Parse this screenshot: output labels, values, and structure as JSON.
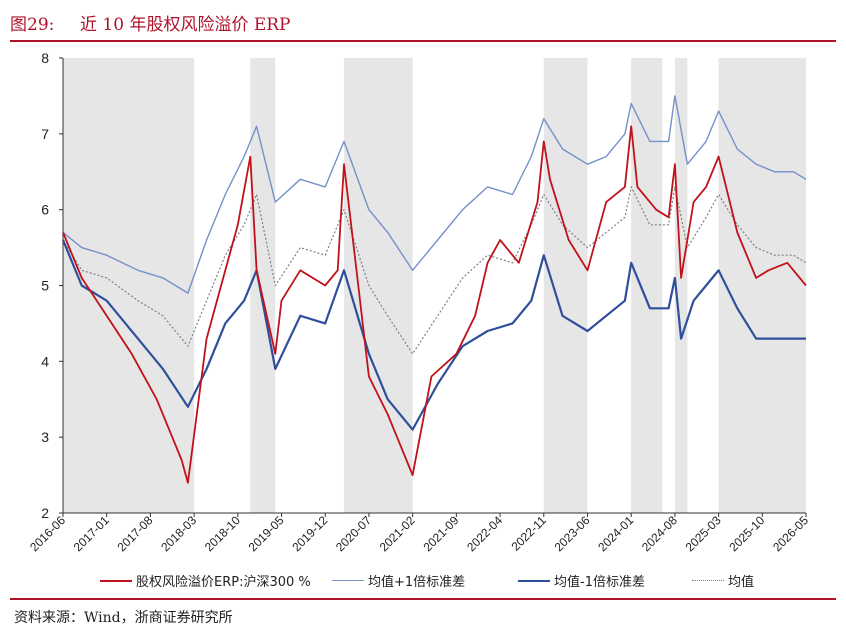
{
  "header": {
    "figure_no": "图29:",
    "title": "近 10 年股权风险溢价 ERP"
  },
  "source": "资料来源：Wind，浙商证券研究所",
  "colors": {
    "erp": "#c0121b",
    "plus1": "#7690c9",
    "minus1": "#2f4f9c",
    "mean": "#808080",
    "shade": "#e6e6e6",
    "accent": "#b0122b"
  },
  "chart_data": {
    "type": "line",
    "ylim": [
      2,
      8
    ],
    "yticks": [
      "2",
      "3",
      "4",
      "5",
      "6",
      "7",
      "8"
    ],
    "xlim": [
      "2016-06",
      "2026-05"
    ],
    "xticks": [
      "2016-06",
      "2017-01",
      "2017-08",
      "2018-03",
      "2018-10",
      "2019-05",
      "2019-12",
      "2020-07",
      "2021-02",
      "2021-09",
      "2022-04",
      "2022-11",
      "2023-06",
      "2024-01",
      "2024-08",
      "2025-03",
      "2025-10",
      "2026-05"
    ],
    "shaded_periods": [
      [
        "2016-06",
        "2018-03"
      ],
      [
        "2018-12",
        "2019-04"
      ],
      [
        "2020-03",
        "2021-02"
      ],
      [
        "2022-11",
        "2023-06"
      ],
      [
        "2024-01",
        "2024-06"
      ],
      [
        "2024-08",
        "2024-10"
      ],
      [
        "2025-03",
        "2026-05"
      ]
    ],
    "series": [
      {
        "name": "股权风险溢价ERP:沪深300 %",
        "key": "erp",
        "x": [
          "2016-06",
          "2016-09",
          "2017-01",
          "2017-05",
          "2017-09",
          "2018-01",
          "2018-02",
          "2018-05",
          "2018-08",
          "2018-10",
          "2018-12",
          "2019-01",
          "2019-04",
          "2019-05",
          "2019-08",
          "2019-12",
          "2020-02",
          "2020-03",
          "2020-05",
          "2020-07",
          "2020-10",
          "2020-12",
          "2021-02",
          "2021-05",
          "2021-09",
          "2021-12",
          "2022-02",
          "2022-04",
          "2022-07",
          "2022-10",
          "2022-11",
          "2022-12",
          "2023-03",
          "2023-06",
          "2023-09",
          "2023-12",
          "2024-01",
          "2024-02",
          "2024-05",
          "2024-07",
          "2024-08",
          "2024-09",
          "2024-11",
          "2025-01",
          "2025-03",
          "2025-06",
          "2025-09",
          "2025-11",
          "2026-02",
          "2026-05"
        ],
        "values": [
          5.7,
          5.1,
          4.6,
          4.1,
          3.5,
          2.7,
          2.4,
          4.3,
          5.2,
          5.8,
          6.7,
          5.2,
          4.1,
          4.8,
          5.2,
          5.0,
          5.2,
          6.6,
          5.2,
          3.8,
          3.3,
          2.9,
          2.5,
          3.8,
          4.1,
          4.6,
          5.3,
          5.6,
          5.3,
          6.1,
          6.9,
          6.4,
          5.6,
          5.2,
          6.1,
          6.3,
          7.1,
          6.3,
          6.0,
          5.9,
          6.6,
          5.1,
          6.1,
          6.3,
          6.7,
          5.7,
          5.1,
          5.2,
          5.3,
          5.0
        ]
      },
      {
        "name": "均值+1倍标准差",
        "key": "plus1",
        "x": [
          "2016-06",
          "2016-09",
          "2017-01",
          "2017-06",
          "2017-10",
          "2018-02",
          "2018-05",
          "2018-08",
          "2018-11",
          "2019-01",
          "2019-04",
          "2019-08",
          "2019-12",
          "2020-03",
          "2020-07",
          "2020-10",
          "2021-02",
          "2021-06",
          "2021-10",
          "2022-02",
          "2022-06",
          "2022-09",
          "2022-11",
          "2023-02",
          "2023-06",
          "2023-09",
          "2023-12",
          "2024-01",
          "2024-04",
          "2024-07",
          "2024-08",
          "2024-10",
          "2025-01",
          "2025-03",
          "2025-06",
          "2025-09",
          "2025-12",
          "2026-03",
          "2026-05"
        ],
        "values": [
          5.7,
          5.5,
          5.4,
          5.2,
          5.1,
          4.9,
          5.6,
          6.2,
          6.7,
          7.1,
          6.1,
          6.4,
          6.3,
          6.9,
          6.0,
          5.7,
          5.2,
          5.6,
          6.0,
          6.3,
          6.2,
          6.7,
          7.2,
          6.8,
          6.6,
          6.7,
          7.0,
          7.4,
          6.9,
          6.9,
          7.5,
          6.6,
          6.9,
          7.3,
          6.8,
          6.6,
          6.5,
          6.5,
          6.4
        ]
      },
      {
        "name": "均值-1倍标准差",
        "key": "minus1",
        "x": [
          "2016-06",
          "2016-09",
          "2017-01",
          "2017-06",
          "2017-10",
          "2018-02",
          "2018-05",
          "2018-08",
          "2018-11",
          "2019-01",
          "2019-04",
          "2019-08",
          "2019-12",
          "2020-03",
          "2020-07",
          "2020-10",
          "2021-02",
          "2021-06",
          "2021-10",
          "2022-02",
          "2022-06",
          "2022-09",
          "2022-11",
          "2023-02",
          "2023-06",
          "2023-09",
          "2023-12",
          "2024-01",
          "2024-04",
          "2024-07",
          "2024-08",
          "2024-09",
          "2024-11",
          "2025-01",
          "2025-03",
          "2025-06",
          "2025-09",
          "2025-12",
          "2026-03",
          "2026-05"
        ],
        "values": [
          5.6,
          5.0,
          4.8,
          4.3,
          3.9,
          3.4,
          3.9,
          4.5,
          4.8,
          5.2,
          3.9,
          4.6,
          4.5,
          5.2,
          4.1,
          3.5,
          3.1,
          3.7,
          4.2,
          4.4,
          4.5,
          4.8,
          5.4,
          4.6,
          4.4,
          4.6,
          4.8,
          5.3,
          4.7,
          4.7,
          5.1,
          4.3,
          4.8,
          5.0,
          5.2,
          4.7,
          4.3,
          4.3,
          4.3,
          4.3
        ]
      },
      {
        "name": "均值",
        "key": "mean",
        "x": [
          "2016-06",
          "2016-09",
          "2017-01",
          "2017-06",
          "2017-10",
          "2018-02",
          "2018-05",
          "2018-08",
          "2018-11",
          "2019-01",
          "2019-04",
          "2019-08",
          "2019-12",
          "2020-03",
          "2020-07",
          "2020-10",
          "2021-02",
          "2021-06",
          "2021-10",
          "2022-02",
          "2022-06",
          "2022-09",
          "2022-11",
          "2023-02",
          "2023-06",
          "2023-09",
          "2023-12",
          "2024-01",
          "2024-04",
          "2024-07",
          "2024-08",
          "2024-10",
          "2025-01",
          "2025-03",
          "2025-06",
          "2025-09",
          "2025-12",
          "2026-03",
          "2026-05"
        ],
        "values": [
          5.6,
          5.2,
          5.1,
          4.8,
          4.6,
          4.2,
          4.8,
          5.4,
          5.8,
          6.2,
          5.0,
          5.5,
          5.4,
          6.0,
          5.0,
          4.6,
          4.1,
          4.6,
          5.1,
          5.4,
          5.3,
          5.8,
          6.2,
          5.8,
          5.5,
          5.7,
          5.9,
          6.3,
          5.8,
          5.8,
          6.3,
          5.5,
          5.9,
          6.2,
          5.8,
          5.5,
          5.4,
          5.4,
          5.3
        ]
      }
    ]
  }
}
